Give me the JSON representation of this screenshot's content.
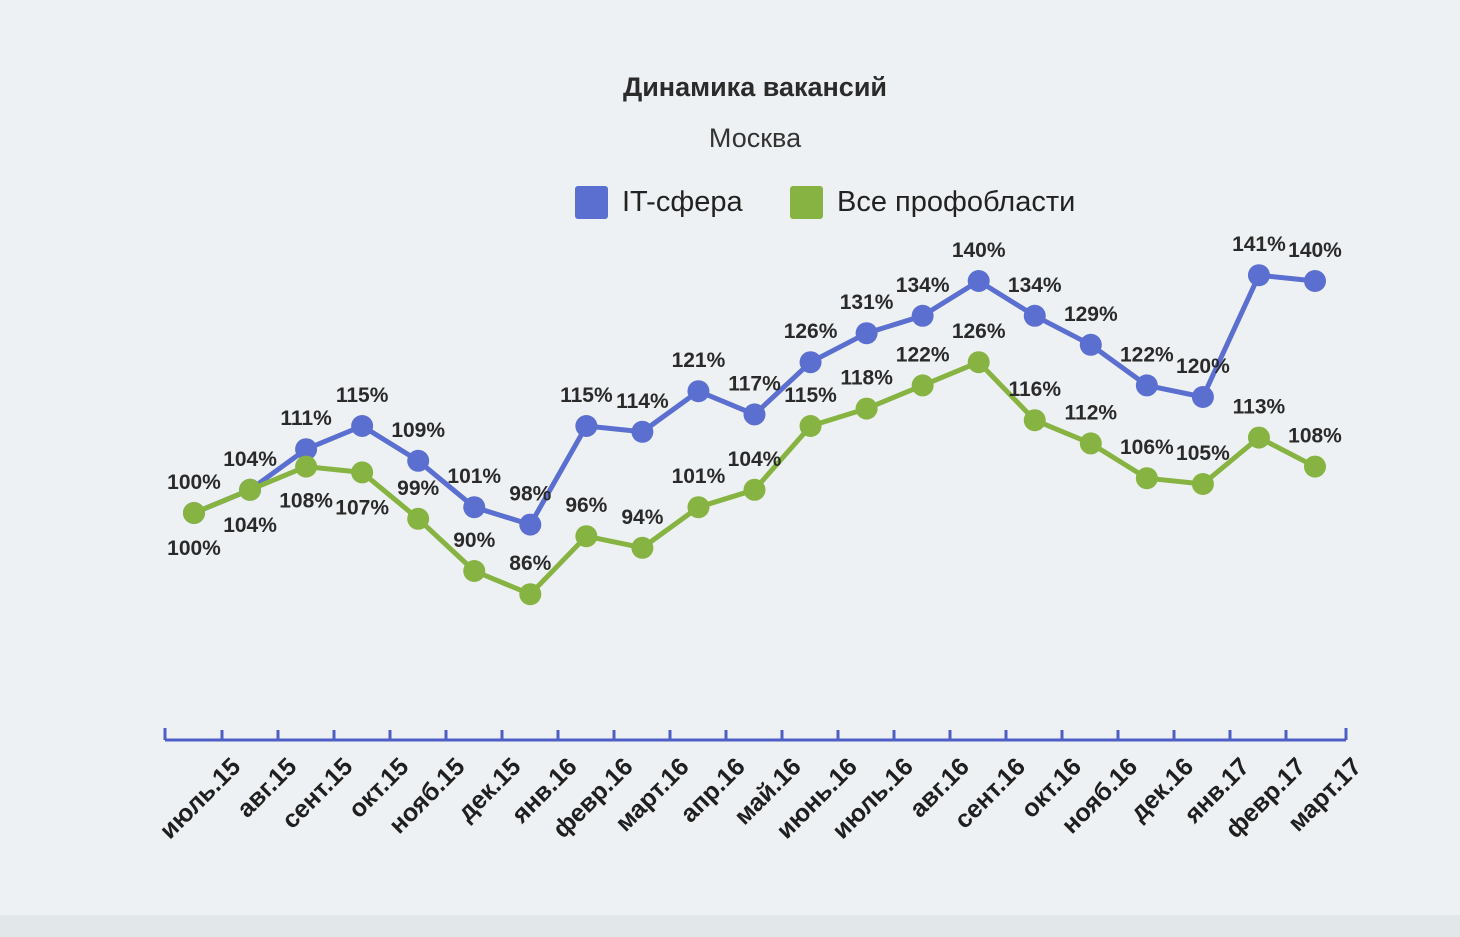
{
  "chart_data": {
    "type": "line",
    "title": "Динамика вакансий",
    "subtitle": "Москва",
    "xlabel": "",
    "ylabel": "",
    "categories": [
      "июль.15",
      "авг.15",
      "сент.15",
      "окт.15",
      "нояб.15",
      "дек.15",
      "янв.16",
      "февр.16",
      "март.16",
      "апр.16",
      "май.16",
      "июнь.16",
      "июль.16",
      "авг.16",
      "сент.16",
      "окт.16",
      "нояб.16",
      "дек.16",
      "янв.17",
      "февр.17",
      "март.17"
    ],
    "series": [
      {
        "name": "IT-сфера",
        "color": "#5b6fd0",
        "values": [
          100,
          104,
          111,
          115,
          109,
          101,
          98,
          115,
          114,
          121,
          117,
          126,
          131,
          134,
          140,
          134,
          129,
          122,
          120,
          141,
          140
        ],
        "labels": [
          "100%",
          "104%",
          "111%",
          "115%",
          "109%",
          "101%",
          "98%",
          "115%",
          "114%",
          "121%",
          "117%",
          "126%",
          "131%",
          "134%",
          "140%",
          "134%",
          "129%",
          "122%",
          "120%",
          "141%",
          "140%"
        ]
      },
      {
        "name": "Все профобласти",
        "color": "#86b341",
        "values": [
          100,
          104,
          108,
          107,
          99,
          90,
          86,
          96,
          94,
          101,
          104,
          115,
          118,
          122,
          126,
          116,
          112,
          106,
          105,
          113,
          108
        ],
        "labels": [
          "100%",
          "104%",
          "108%",
          "107%",
          "99%",
          "90%",
          "86%",
          "96%",
          "94%",
          "101%",
          "104%",
          "115%",
          "118%",
          "122%",
          "126%",
          "116%",
          "112%",
          "106%",
          "105%",
          "113%",
          "108%"
        ]
      }
    ],
    "ylim": [
      70,
      150
    ],
    "grid": false,
    "legend": "top-center",
    "axis_color": "#4d5fc6"
  }
}
